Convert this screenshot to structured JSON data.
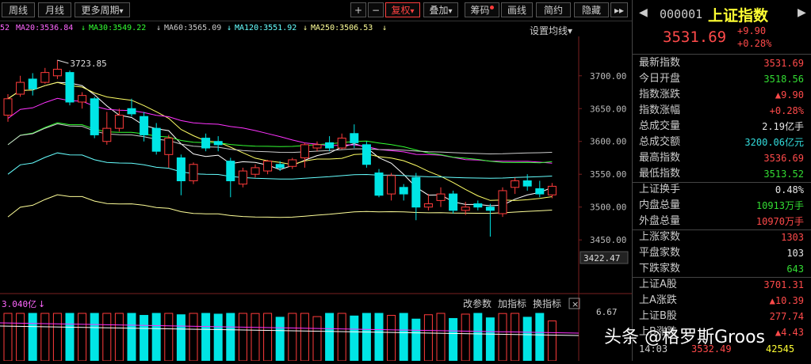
{
  "toolbar": {
    "period_week": "周线",
    "period_month": "月线",
    "more_periods": "更多周期",
    "plus": "+",
    "minus": "−",
    "adjust": "复权",
    "overlay": "叠加",
    "chips": "筹码",
    "draw": "画线",
    "simple": "简约",
    "hide": "隐藏",
    "more_arrows": "▸▸",
    "dropdown_arrow": "▾"
  },
  "ma_bar": {
    "prefix": "52",
    "ma20": "MA20:3536.84",
    "ma30": "MA30:3549.22",
    "ma60": "MA60:3565.09",
    "ma120": "MA120:3551.92",
    "ma250": "MA250:3506.53",
    "arrow": "↓",
    "settings": "设置均线"
  },
  "price_axis": {
    "labels": [
      "3700.00",
      "3650.00",
      "3600.00",
      "3550.00",
      "3500.00",
      "3450.00"
    ],
    "current": "3422.47",
    "high_marker": "3723.85"
  },
  "volume_panel": {
    "label": "3.040亿",
    "label_arrow": "↓",
    "change_params": "改参数",
    "add_indicator": "加指标",
    "switch_indicator": "换指标",
    "close": "×",
    "axis_value": "6.67"
  },
  "stock": {
    "code": "000001",
    "name": "上证指数",
    "price": "3531.69",
    "change": "+9.90",
    "change_pct": "+0.28%",
    "nav_left": "◀",
    "nav_right": "▶"
  },
  "quote_rows": [
    {
      "label": "最新指数",
      "value": "3531.69",
      "color": "red"
    },
    {
      "label": "今日开盘",
      "value": "3518.56",
      "color": "green"
    },
    {
      "label": "指数涨跌",
      "value": "▲9.90",
      "color": "red"
    },
    {
      "label": "指数涨幅",
      "value": "+0.28%",
      "color": "red"
    },
    {
      "label": "总成交量",
      "value": "2.19亿手",
      "color": "white"
    },
    {
      "label": "总成交额",
      "value": "3200.06亿元",
      "color": "cyan"
    },
    {
      "label": "最高指数",
      "value": "3536.69",
      "color": "red"
    },
    {
      "label": "最低指数",
      "value": "3513.52",
      "color": "green"
    },
    {
      "label": "上证换手",
      "value": "0.48%",
      "color": "white"
    },
    {
      "label": "内盘总量",
      "value": "10913万手",
      "color": "green"
    },
    {
      "label": "外盘总量",
      "value": "10970万手",
      "color": "red"
    },
    {
      "label": "上涨家数",
      "value": "1303",
      "color": "red"
    },
    {
      "label": "平盘家数",
      "value": "103",
      "color": "white"
    },
    {
      "label": "下跌家数",
      "value": "643",
      "color": "green"
    },
    {
      "label": "上证A股",
      "value": "3701.31",
      "color": "red"
    },
    {
      "label": "上A涨跌",
      "value": "▲10.39",
      "color": "red"
    },
    {
      "label": "上证B股",
      "value": "277.74",
      "color": "red"
    },
    {
      "label": "上B涨跌",
      "value": "▲4.43",
      "color": "red"
    }
  ],
  "bottom_row": {
    "time": "14:03",
    "price": "3532.49",
    "volume": "42545"
  },
  "watermark": "头条 @格罗斯Groos",
  "colors": {
    "up": "#ff3b3b",
    "down": "#00e5e5",
    "ma5": "#ffffff",
    "ma10": "#ffff66",
    "ma20": "#ff33ff",
    "ma30": "#33ff33",
    "ma60": "#cccccc",
    "ma120": "#66ffff",
    "ma250": "#ffff99"
  },
  "chart_data": {
    "type": "candlestick",
    "price_range": [
      3422.47,
      3760
    ],
    "candles": [
      {
        "o": 3640,
        "c": 3665,
        "h": 3672,
        "l": 3630
      },
      {
        "o": 3672,
        "c": 3690,
        "h": 3700,
        "l": 3668
      },
      {
        "o": 3695,
        "c": 3680,
        "h": 3704,
        "l": 3670
      },
      {
        "o": 3690,
        "c": 3705,
        "h": 3712,
        "l": 3688
      },
      {
        "o": 3700,
        "c": 3710,
        "h": 3723.85,
        "l": 3695
      },
      {
        "o": 3705,
        "c": 3660,
        "h": 3708,
        "l": 3655
      },
      {
        "o": 3660,
        "c": 3670,
        "h": 3675,
        "l": 3650
      },
      {
        "o": 3665,
        "c": 3610,
        "h": 3668,
        "l": 3605
      },
      {
        "o": 3600,
        "c": 3620,
        "h": 3645,
        "l": 3595
      },
      {
        "o": 3620,
        "c": 3640,
        "h": 3650,
        "l": 3615
      },
      {
        "o": 3650,
        "c": 3642,
        "h": 3665,
        "l": 3638
      },
      {
        "o": 3638,
        "c": 3610,
        "h": 3645,
        "l": 3600
      },
      {
        "o": 3620,
        "c": 3585,
        "h": 3628,
        "l": 3580
      },
      {
        "o": 3580,
        "c": 3605,
        "h": 3610,
        "l": 3560
      },
      {
        "o": 3575,
        "c": 3540,
        "h": 3580,
        "l": 3518
      },
      {
        "o": 3540,
        "c": 3565,
        "h": 3568,
        "l": 3535
      },
      {
        "o": 3605,
        "c": 3590,
        "h": 3612,
        "l": 3585
      },
      {
        "o": 3600,
        "c": 3595,
        "h": 3608,
        "l": 3585
      },
      {
        "o": 3570,
        "c": 3540,
        "h": 3575,
        "l": 3515
      },
      {
        "o": 3535,
        "c": 3555,
        "h": 3560,
        "l": 3530
      },
      {
        "o": 3550,
        "c": 3560,
        "h": 3565,
        "l": 3545
      },
      {
        "o": 3555,
        "c": 3570,
        "h": 3572,
        "l": 3550
      },
      {
        "o": 3565,
        "c": 3560,
        "h": 3570,
        "l": 3555
      },
      {
        "o": 3562,
        "c": 3572,
        "h": 3575,
        "l": 3558
      },
      {
        "o": 3575,
        "c": 3595,
        "h": 3598,
        "l": 3560
      },
      {
        "o": 3590,
        "c": 3595,
        "h": 3600,
        "l": 3585
      },
      {
        "o": 3598,
        "c": 3590,
        "h": 3608,
        "l": 3585
      },
      {
        "o": 3590,
        "c": 3605,
        "h": 3612,
        "l": 3588
      },
      {
        "o": 3612,
        "c": 3598,
        "h": 3626,
        "l": 3590
      },
      {
        "o": 3595,
        "c": 3565,
        "h": 3600,
        "l": 3560
      },
      {
        "o": 3552,
        "c": 3518,
        "h": 3558,
        "l": 3515
      },
      {
        "o": 3520,
        "c": 3548,
        "h": 3552,
        "l": 3510
      },
      {
        "o": 3530,
        "c": 3520,
        "h": 3535,
        "l": 3510
      },
      {
        "o": 3545,
        "c": 3500,
        "h": 3552,
        "l": 3480
      },
      {
        "o": 3500,
        "c": 3505,
        "h": 3520,
        "l": 3495
      },
      {
        "o": 3510,
        "c": 3520,
        "h": 3530,
        "l": 3500
      },
      {
        "o": 3520,
        "c": 3495,
        "h": 3525,
        "l": 3490
      },
      {
        "o": 3495,
        "c": 3500,
        "h": 3508,
        "l": 3488
      },
      {
        "o": 3505,
        "c": 3500,
        "h": 3510,
        "l": 3495
      },
      {
        "o": 3500,
        "c": 3495,
        "h": 3505,
        "l": 3455
      },
      {
        "o": 3490,
        "c": 3525,
        "h": 3530,
        "l": 3485
      },
      {
        "o": 3530,
        "c": 3540,
        "h": 3545,
        "l": 3520
      },
      {
        "o": 3540,
        "c": 3532,
        "h": 3550,
        "l": 3525
      },
      {
        "o": 3528,
        "c": 3520,
        "h": 3540,
        "l": 3515
      },
      {
        "o": 3518.56,
        "c": 3531.69,
        "h": 3536.69,
        "l": 3513.52
      }
    ],
    "volume_range": [
      0,
      6.67
    ]
  }
}
